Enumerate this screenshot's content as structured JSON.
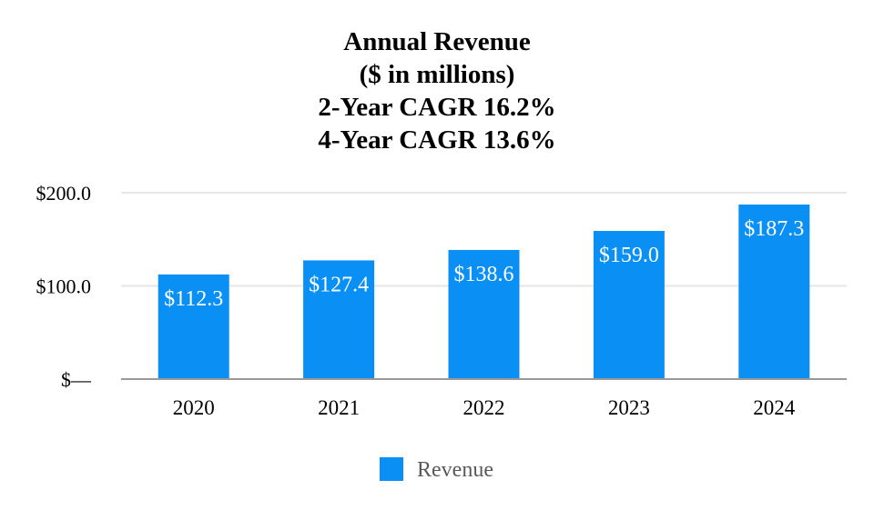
{
  "chart_data": {
    "type": "bar",
    "title_lines": [
      "Annual Revenue",
      "($ in millions)",
      "2-Year CAGR 16.2%",
      "4-Year CAGR 13.6%"
    ],
    "categories": [
      "2020",
      "2021",
      "2022",
      "2023",
      "2024"
    ],
    "series": [
      {
        "name": "Revenue",
        "values": [
          112.3,
          127.4,
          138.6,
          159.0,
          187.3
        ],
        "labels": [
          "$112.3",
          "$127.4",
          "$138.6",
          "$159.0",
          "$187.3"
        ],
        "color": "#0a8ff5"
      }
    ],
    "y_ticks": [
      {
        "value": 0,
        "label": "$—"
      },
      {
        "value": 100,
        "label": "$100.0"
      },
      {
        "value": 200,
        "label": "$200.0"
      }
    ],
    "ylim": [
      0,
      200
    ],
    "xlabel": "",
    "ylabel": "",
    "grid": true,
    "legend_position": "bottom-center",
    "colors": {
      "bar": "#0a8ff5",
      "grid": "#e6e6e6",
      "axis": "#999999",
      "legend_text": "#595959"
    }
  }
}
